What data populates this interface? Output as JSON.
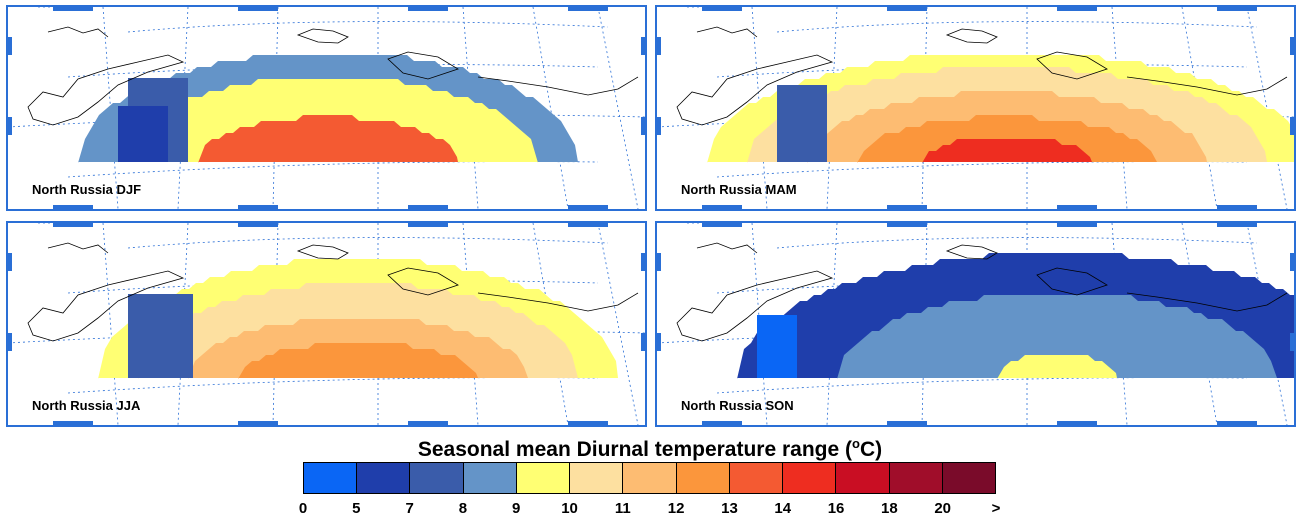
{
  "panels": [
    {
      "id": "djf",
      "label": "North Russia DJF"
    },
    {
      "id": "mam",
      "label": "North Russia MAM"
    },
    {
      "id": "jja",
      "label": "North Russia JJA"
    },
    {
      "id": "son",
      "label": "North Russia SON"
    }
  ],
  "legend": {
    "title_main": "Seasonal mean Diurnal temperature range (",
    "title_sup": "o",
    "title_unit": "C)",
    "ticks": [
      "0",
      "5",
      "7",
      "8",
      "9",
      "10",
      "11",
      "12",
      "13",
      "14",
      "16",
      "18",
      "20",
      ">"
    ],
    "colors": [
      "#0a66f5",
      "#1f3eab",
      "#3a5caa",
      "#6494c8",
      "#ffff73",
      "#fde0a0",
      "#fdbc72",
      "#fb963c",
      "#f45a32",
      "#ee2d20",
      "#c90e23",
      "#a00d2a",
      "#7a0b2a"
    ]
  }
}
